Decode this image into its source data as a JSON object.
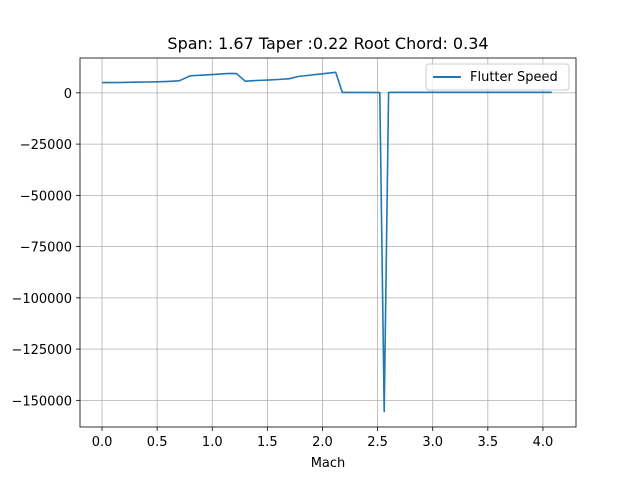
{
  "chart_data": {
    "type": "line",
    "title": "Span: 1.67 Taper :0.22 Root Chord: 0.34",
    "xlabel": "Mach",
    "ylabel": "",
    "xlim": [
      -0.2,
      4.3
    ],
    "ylim": [
      -163000,
      17000
    ],
    "grid": true,
    "legend_position": "top-right",
    "xticks": [
      0.0,
      0.5,
      1.0,
      1.5,
      2.0,
      2.5,
      3.0,
      3.5,
      4.0
    ],
    "xtick_labels": [
      "0.0",
      "0.5",
      "1.0",
      "1.5",
      "2.0",
      "2.5",
      "3.0",
      "3.5",
      "4.0"
    ],
    "yticks": [
      0,
      -25000,
      -50000,
      -75000,
      -100000,
      -125000,
      -150000
    ],
    "ytick_labels": [
      "0",
      "−25000",
      "−50000",
      "−75000",
      "−100000",
      "−125000",
      "−150000"
    ],
    "series": [
      {
        "name": "Flutter Speed",
        "color": "#1f77b4",
        "x": [
          0.0,
          0.1,
          0.2,
          0.3,
          0.4,
          0.5,
          0.6,
          0.7,
          0.8,
          0.9,
          1.0,
          1.1,
          1.15,
          1.22,
          1.3,
          1.4,
          1.5,
          1.6,
          1.7,
          1.78,
          1.9,
          2.0,
          2.12,
          2.18,
          2.3,
          2.4,
          2.52,
          2.56,
          2.6,
          2.7,
          2.8,
          3.0,
          3.2,
          3.4,
          3.6,
          3.8,
          4.0,
          4.08
        ],
        "y": [
          5000,
          5000,
          5100,
          5200,
          5300,
          5400,
          5600,
          5900,
          8300,
          8600,
          8900,
          9300,
          9500,
          9400,
          5700,
          6000,
          6200,
          6500,
          6900,
          8000,
          8700,
          9300,
          10000,
          200,
          200,
          200,
          100,
          -155500,
          200,
          250,
          250,
          250,
          250,
          250,
          250,
          250,
          250,
          250
        ]
      }
    ]
  }
}
